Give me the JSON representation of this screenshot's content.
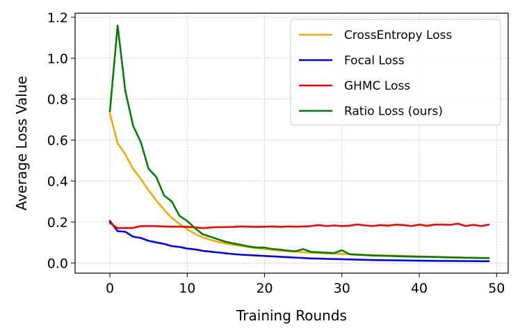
{
  "chart_data": {
    "type": "line",
    "title": "",
    "xlabel": "Training Rounds",
    "ylabel": "Average Loss Value",
    "xlim": [
      -4.5,
      51.5
    ],
    "ylim": [
      -0.05,
      1.22
    ],
    "xticks": [
      0,
      10,
      20,
      30,
      40,
      50
    ],
    "yticks": [
      0.0,
      0.2,
      0.4,
      0.6,
      0.8,
      1.0,
      1.2
    ],
    "xtick_labels": [
      "0",
      "10",
      "20",
      "30",
      "40",
      "50"
    ],
    "ytick_labels": [
      "0.0",
      "0.2",
      "0.4",
      "0.6",
      "0.8",
      "1.0",
      "1.2"
    ],
    "grid": true,
    "legend_position": "top-right",
    "x": [
      0,
      1,
      2,
      3,
      4,
      5,
      6,
      7,
      8,
      9,
      10,
      11,
      12,
      13,
      14,
      15,
      16,
      17,
      18,
      19,
      20,
      21,
      22,
      23,
      24,
      25,
      26,
      27,
      28,
      29,
      30,
      31,
      32,
      33,
      34,
      35,
      36,
      37,
      38,
      39,
      40,
      41,
      42,
      43,
      44,
      45,
      46,
      47,
      48,
      49
    ],
    "series": [
      {
        "name": "CrossEntropy Loss",
        "color": "#ffa500",
        "values": [
          0.73,
          0.585,
          0.53,
          0.46,
          0.41,
          0.355,
          0.305,
          0.26,
          0.22,
          0.19,
          0.165,
          0.142,
          0.125,
          0.113,
          0.103,
          0.095,
          0.088,
          0.082,
          0.077,
          0.072,
          0.068,
          0.064,
          0.06,
          0.057,
          0.055,
          0.052,
          0.05,
          0.048,
          0.046,
          0.045,
          0.044,
          0.043,
          0.041,
          0.04,
          0.038,
          0.037,
          0.036,
          0.035,
          0.034,
          0.033,
          0.032,
          0.031,
          0.03,
          0.029,
          0.028,
          0.027,
          0.026,
          0.025,
          0.024,
          0.023
        ]
      },
      {
        "name": "Focal Loss",
        "color": "#0000ff",
        "values": [
          0.205,
          0.155,
          0.152,
          0.128,
          0.122,
          0.108,
          0.1,
          0.093,
          0.082,
          0.078,
          0.07,
          0.066,
          0.059,
          0.055,
          0.051,
          0.047,
          0.043,
          0.04,
          0.038,
          0.036,
          0.034,
          0.032,
          0.03,
          0.028,
          0.026,
          0.024,
          0.022,
          0.021,
          0.02,
          0.019,
          0.018,
          0.017,
          0.016,
          0.015,
          0.014,
          0.0135,
          0.013,
          0.0125,
          0.012,
          0.0115,
          0.011,
          0.0105,
          0.01,
          0.0098,
          0.0095,
          0.0092,
          0.009,
          0.0088,
          0.0085,
          0.0082
        ]
      },
      {
        "name": "GHMC Loss",
        "color": "#ff0000",
        "values": [
          0.195,
          0.17,
          0.17,
          0.171,
          0.18,
          0.18,
          0.18,
          0.178,
          0.177,
          0.177,
          0.176,
          0.174,
          0.17,
          0.173,
          0.175,
          0.175,
          0.176,
          0.178,
          0.177,
          0.176,
          0.177,
          0.178,
          0.176,
          0.178,
          0.177,
          0.178,
          0.18,
          0.185,
          0.18,
          0.183,
          0.18,
          0.182,
          0.188,
          0.183,
          0.18,
          0.185,
          0.182,
          0.187,
          0.185,
          0.18,
          0.187,
          0.181,
          0.187,
          0.187,
          0.186,
          0.192,
          0.18,
          0.186,
          0.18,
          0.187
        ]
      },
      {
        "name": "Ratio Loss (ours)",
        "color": "#008000",
        "values": [
          0.74,
          1.16,
          0.84,
          0.67,
          0.59,
          0.46,
          0.42,
          0.33,
          0.3,
          0.23,
          0.205,
          0.17,
          0.14,
          0.128,
          0.115,
          0.103,
          0.095,
          0.088,
          0.08,
          0.075,
          0.075,
          0.068,
          0.065,
          0.06,
          0.057,
          0.067,
          0.054,
          0.052,
          0.05,
          0.048,
          0.062,
          0.042,
          0.04,
          0.038,
          0.036,
          0.035,
          0.034,
          0.033,
          0.032,
          0.031,
          0.03,
          0.03,
          0.029,
          0.028,
          0.027,
          0.026,
          0.025,
          0.025,
          0.024,
          0.024
        ]
      }
    ]
  }
}
